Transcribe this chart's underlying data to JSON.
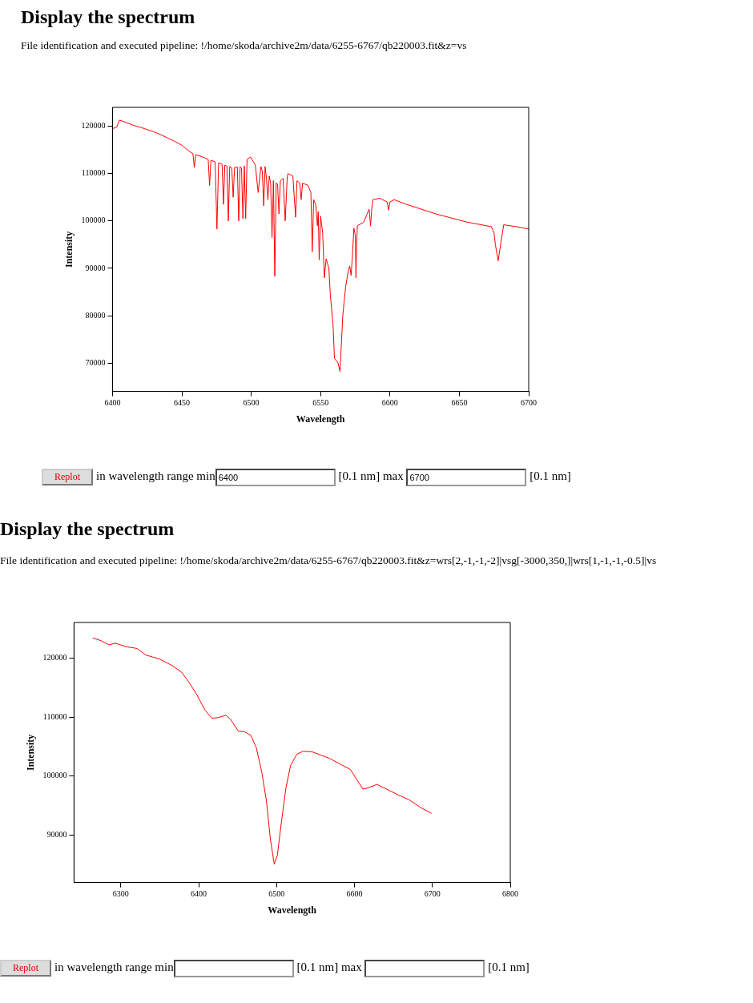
{
  "chart_data": [
    {
      "type": "line",
      "title": "Display the spectrum",
      "subtitle": "File identification and executed pipeline: !/home/skoda/archive2m/data/6255-6767/qb220003.fit&z=vs",
      "xlabel": "Wavelength",
      "ylabel": "Intensity",
      "xlim": [
        6400,
        6700
      ],
      "xticks": [
        6400,
        6450,
        6500,
        6550,
        6600,
        6650,
        6700
      ],
      "ylim": [
        64000,
        124000
      ],
      "yticks": [
        70000,
        80000,
        90000,
        100000,
        110000,
        120000
      ],
      "grid": false,
      "legend": false,
      "marker": "none",
      "line_style": "solid",
      "annotations": [
        "Replot",
        "in wavelength range min",
        "6400",
        "[0.1 nm] max",
        "6700",
        "[0.1 nm]"
      ],
      "series": [
        {
          "color": "#ff0000",
          "x": [
            6400,
            6403,
            6405,
            6410,
            6415,
            6420,
            6425,
            6430,
            6435,
            6440,
            6445,
            6450,
            6455,
            6458,
            6459,
            6460,
            6465,
            6469,
            6470,
            6471,
            6474,
            6475.3,
            6476.5,
            6479,
            6480,
            6481,
            6482.5,
            6483.5,
            6484.5,
            6486,
            6487,
            6488,
            6490,
            6491,
            6492,
            6493,
            6494,
            6495,
            6496,
            6497,
            6499.5,
            6503,
            6505,
            6507,
            6508,
            6509,
            6510,
            6511,
            6512,
            6513,
            6514,
            6515,
            6516,
            6517,
            6518,
            6519,
            6520,
            6521,
            6523,
            6524.5,
            6526,
            6526.5,
            6530,
            6532,
            6533,
            6535,
            6536,
            6537,
            6541,
            6543,
            6544,
            6545,
            6546.5,
            6547.7,
            6548.3,
            6549,
            6550,
            6551.5,
            6552.7,
            6554,
            6556,
            6557,
            6559,
            6560,
            6562.6,
            6564,
            6566,
            6568,
            6570,
            6571,
            6572,
            6573,
            6574,
            6575,
            6575.5,
            6576,
            6576.5,
            6581,
            6585,
            6586,
            6587,
            6587.7,
            6592.6,
            6598,
            6599,
            6600,
            6603,
            6612,
            6633,
            6655,
            6673,
            6675,
            6676,
            6678,
            6680,
            6682,
            6691,
            6700
          ],
          "values": [
            119500,
            119800,
            121300,
            120800,
            120200,
            119800,
            119300,
            118800,
            118200,
            117500,
            116800,
            116000,
            114800,
            114200,
            111300,
            114000,
            113500,
            113000,
            107500,
            112800,
            112500,
            98300,
            112300,
            112000,
            103500,
            111800,
            111600,
            100000,
            111500,
            111200,
            105000,
            111300,
            111400,
            100000,
            111500,
            111200,
            100500,
            111600,
            100500,
            113000,
            113500,
            111800,
            106000,
            111500,
            110500,
            103200,
            111500,
            109000,
            104500,
            109500,
            108000,
            96500,
            108500,
            88300,
            108000,
            107800,
            101500,
            108500,
            109000,
            100000,
            109500,
            110000,
            109500,
            100800,
            108500,
            108000,
            104500,
            108000,
            107500,
            106000,
            93500,
            104500,
            103500,
            99000,
            102000,
            91800,
            101000,
            97500,
            88000,
            92000,
            90000,
            84500,
            78000,
            71000,
            70000,
            68200,
            80000,
            86000,
            89500,
            90500,
            88500,
            93000,
            98500,
            97000,
            88000,
            95000,
            99000,
            99700,
            102500,
            99000,
            103000,
            104500,
            104800,
            104000,
            102300,
            104000,
            104500,
            103500,
            101500,
            99800,
            98800,
            97500,
            95000,
            91600,
            95500,
            99200,
            98800,
            98300
          ]
        }
      ]
    },
    {
      "type": "line",
      "title": "Display the spectrum",
      "subtitle": "File identification and executed pipeline: !/home/skoda/archive2m/data/6255-6767/qb220003.fit&z=wrs[2,-1,-1,-2]|vsg[-3000,350,]|wrs[1,-1,-1,-0.5]|vs",
      "xlabel": "Wavelength",
      "ylabel": "Intensity",
      "xlim": [
        6240,
        6800
      ],
      "xticks": [
        6300,
        6400,
        6500,
        6600,
        6700,
        6800
      ],
      "ylim": [
        82000,
        126000
      ],
      "yticks": [
        90000,
        100000,
        110000,
        120000
      ],
      "grid": false,
      "legend": false,
      "marker": "none",
      "line_style": "solid",
      "annotations": [
        "Replot",
        "in wavelength range min",
        "[0.1 nm] max",
        "[0.1 nm]"
      ],
      "series": [
        {
          "color": "#ff0000",
          "x": [
            6264,
            6275,
            6285,
            6293,
            6307,
            6321,
            6332,
            6350,
            6366,
            6378,
            6388,
            6398,
            6408,
            6417,
            6425,
            6435,
            6441,
            6451,
            6459,
            6467,
            6474,
            6481,
            6487,
            6492,
            6497,
            6501,
            6506,
            6512,
            6518,
            6526,
            6534,
            6546,
            6568,
            6595,
            6603,
            6611,
            6617,
            6629,
            6655,
            6670,
            6686,
            6699
          ],
          "values": [
            123400,
            122900,
            122200,
            122500,
            121900,
            121600,
            120500,
            119800,
            118700,
            117600,
            115800,
            113700,
            111200,
            109800,
            109900,
            110300,
            109600,
            107600,
            107500,
            106900,
            104800,
            100700,
            95800,
            89400,
            85100,
            86600,
            92000,
            98000,
            101800,
            103700,
            104200,
            104100,
            103000,
            101100,
            99400,
            97800,
            98000,
            98600,
            96900,
            96000,
            94600,
            93700
          ]
        }
      ]
    }
  ]
}
